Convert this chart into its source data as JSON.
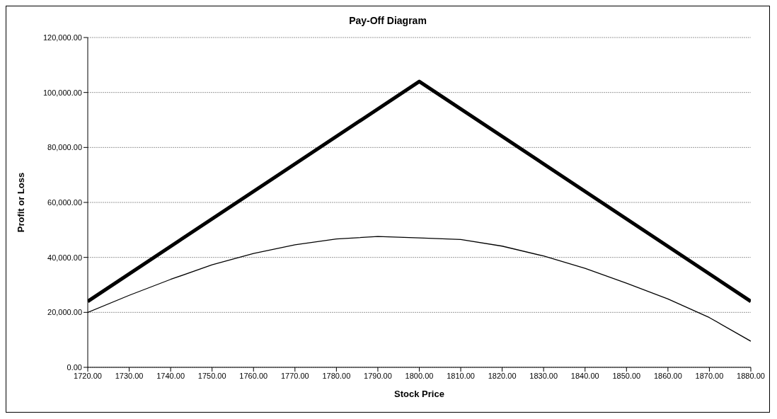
{
  "chart_data": {
    "type": "line",
    "title": "Pay-Off Diagram",
    "xlabel": "Stock Price",
    "ylabel": "Profit or Loss",
    "xlim": [
      1720,
      1880
    ],
    "xticks": [
      {
        "value": 1720,
        "label": "1720.00"
      },
      {
        "value": 1730,
        "label": "1730.00"
      },
      {
        "value": 1740,
        "label": "1740.00"
      },
      {
        "value": 1750,
        "label": "1750.00"
      },
      {
        "value": 1760,
        "label": "1760.00"
      },
      {
        "value": 1770,
        "label": "1770.00"
      },
      {
        "value": 1780,
        "label": "1780.00"
      },
      {
        "value": 1790,
        "label": "1790.00"
      },
      {
        "value": 1800,
        "label": "1800.00"
      },
      {
        "value": 1810,
        "label": "1810.00"
      },
      {
        "value": 1820,
        "label": "1820.00"
      },
      {
        "value": 1830,
        "label": "1830.00"
      },
      {
        "value": 1840,
        "label": "1840.00"
      },
      {
        "value": 1850,
        "label": "1850.00"
      },
      {
        "value": 1860,
        "label": "1860.00"
      },
      {
        "value": 1870,
        "label": "1870.00"
      },
      {
        "value": 1880,
        "label": "1880.00"
      }
    ],
    "ylim": [
      0,
      120000
    ],
    "yticks": [
      {
        "value": 0,
        "label": "0.00"
      },
      {
        "value": 20000,
        "label": "20,000.00"
      },
      {
        "value": 40000,
        "label": "40,000.00"
      },
      {
        "value": 60000,
        "label": "60,000.00"
      },
      {
        "value": 80000,
        "label": "80,000.00"
      },
      {
        "value": 100000,
        "label": "100,000.00"
      },
      {
        "value": 120000,
        "label": "120,000.00"
      }
    ],
    "grid": "y",
    "marker": "none",
    "line_style": "solid",
    "series": [
      {
        "color": "#000000",
        "x": [
          1720,
          1800,
          1880
        ],
        "values": [
          24000,
          104000,
          24000
        ]
      },
      {
        "color": "#000000",
        "x": [
          1720,
          1730,
          1740,
          1750,
          1760,
          1770,
          1780,
          1790,
          1800,
          1810,
          1820,
          1830,
          1840,
          1850,
          1860,
          1870,
          1880
        ],
        "values": [
          20000,
          26200,
          32000,
          37300,
          41400,
          44600,
          46700,
          47600,
          47100,
          46500,
          44100,
          40500,
          36000,
          30600,
          24900,
          18100,
          9500
        ]
      }
    ]
  }
}
